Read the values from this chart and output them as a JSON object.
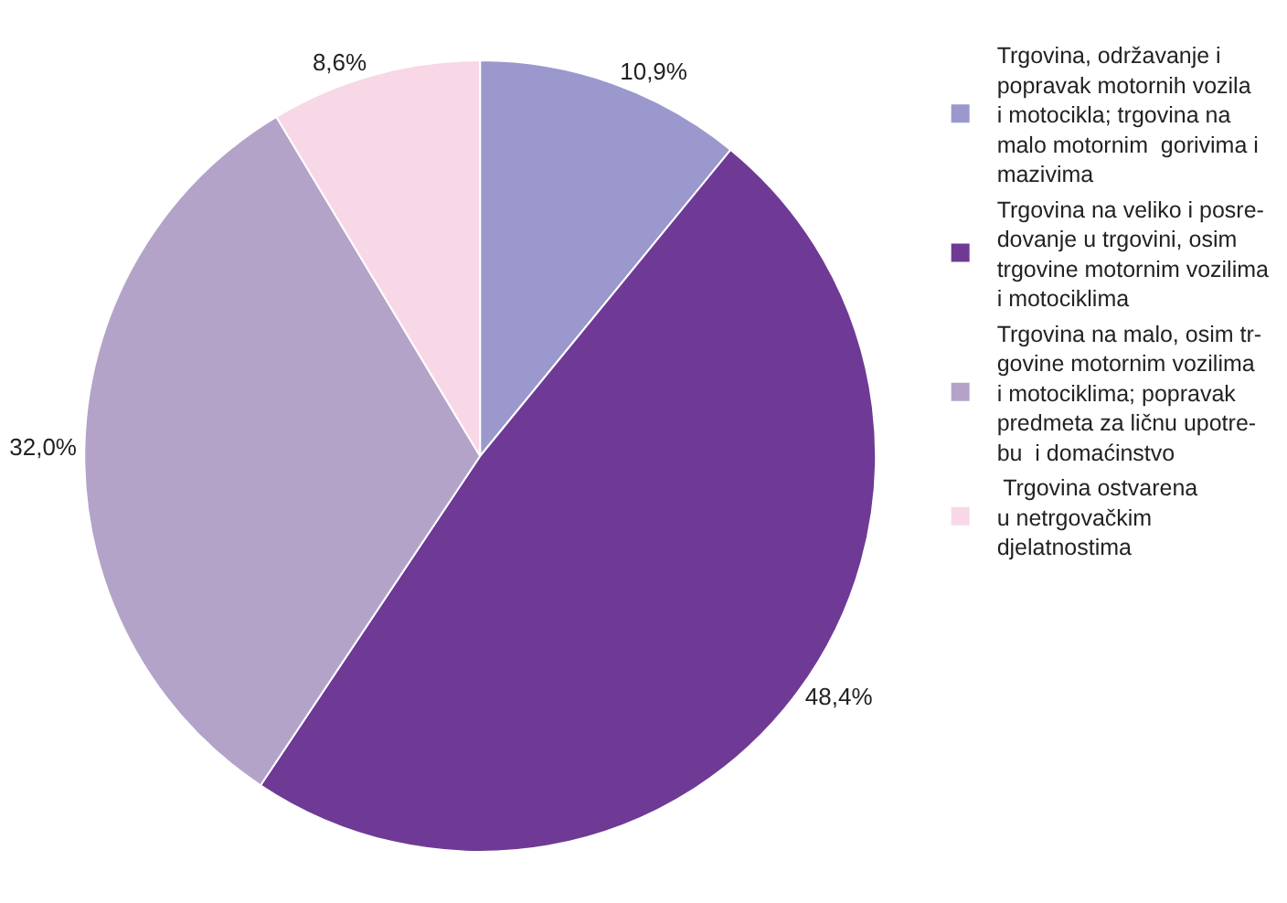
{
  "chart_data": {
    "type": "pie",
    "categories": [
      "Trgovina, održavanje i\npopravak motornih vozila\ni motocikla; trgovina na\nmalo motornim  gorivima i\nmazivima",
      "Trgovina na veliko i posre-\ndovanje u trgovini, osim\ntrgovine motornim vozilima\ni motociklima",
      "Trgovina na malo, osim tr-\ngovine motornim vozilima\ni motociklima; popravak\npredmeta za ličnu upotre-\nbu  i domaćinstvo",
      " Trgovina ostvarena\nu netrgovačkim\ndjelatnostima"
    ],
    "values": [
      10.9,
      48.4,
      32.0,
      8.6
    ],
    "colors": [
      "#9a98cc",
      "#6e3a96",
      "#b4a3c9",
      "#f8d7e6"
    ],
    "value_labels": [
      "10,9%",
      "48,4%",
      "32,0%",
      "8,6%"
    ],
    "legend": "right"
  }
}
